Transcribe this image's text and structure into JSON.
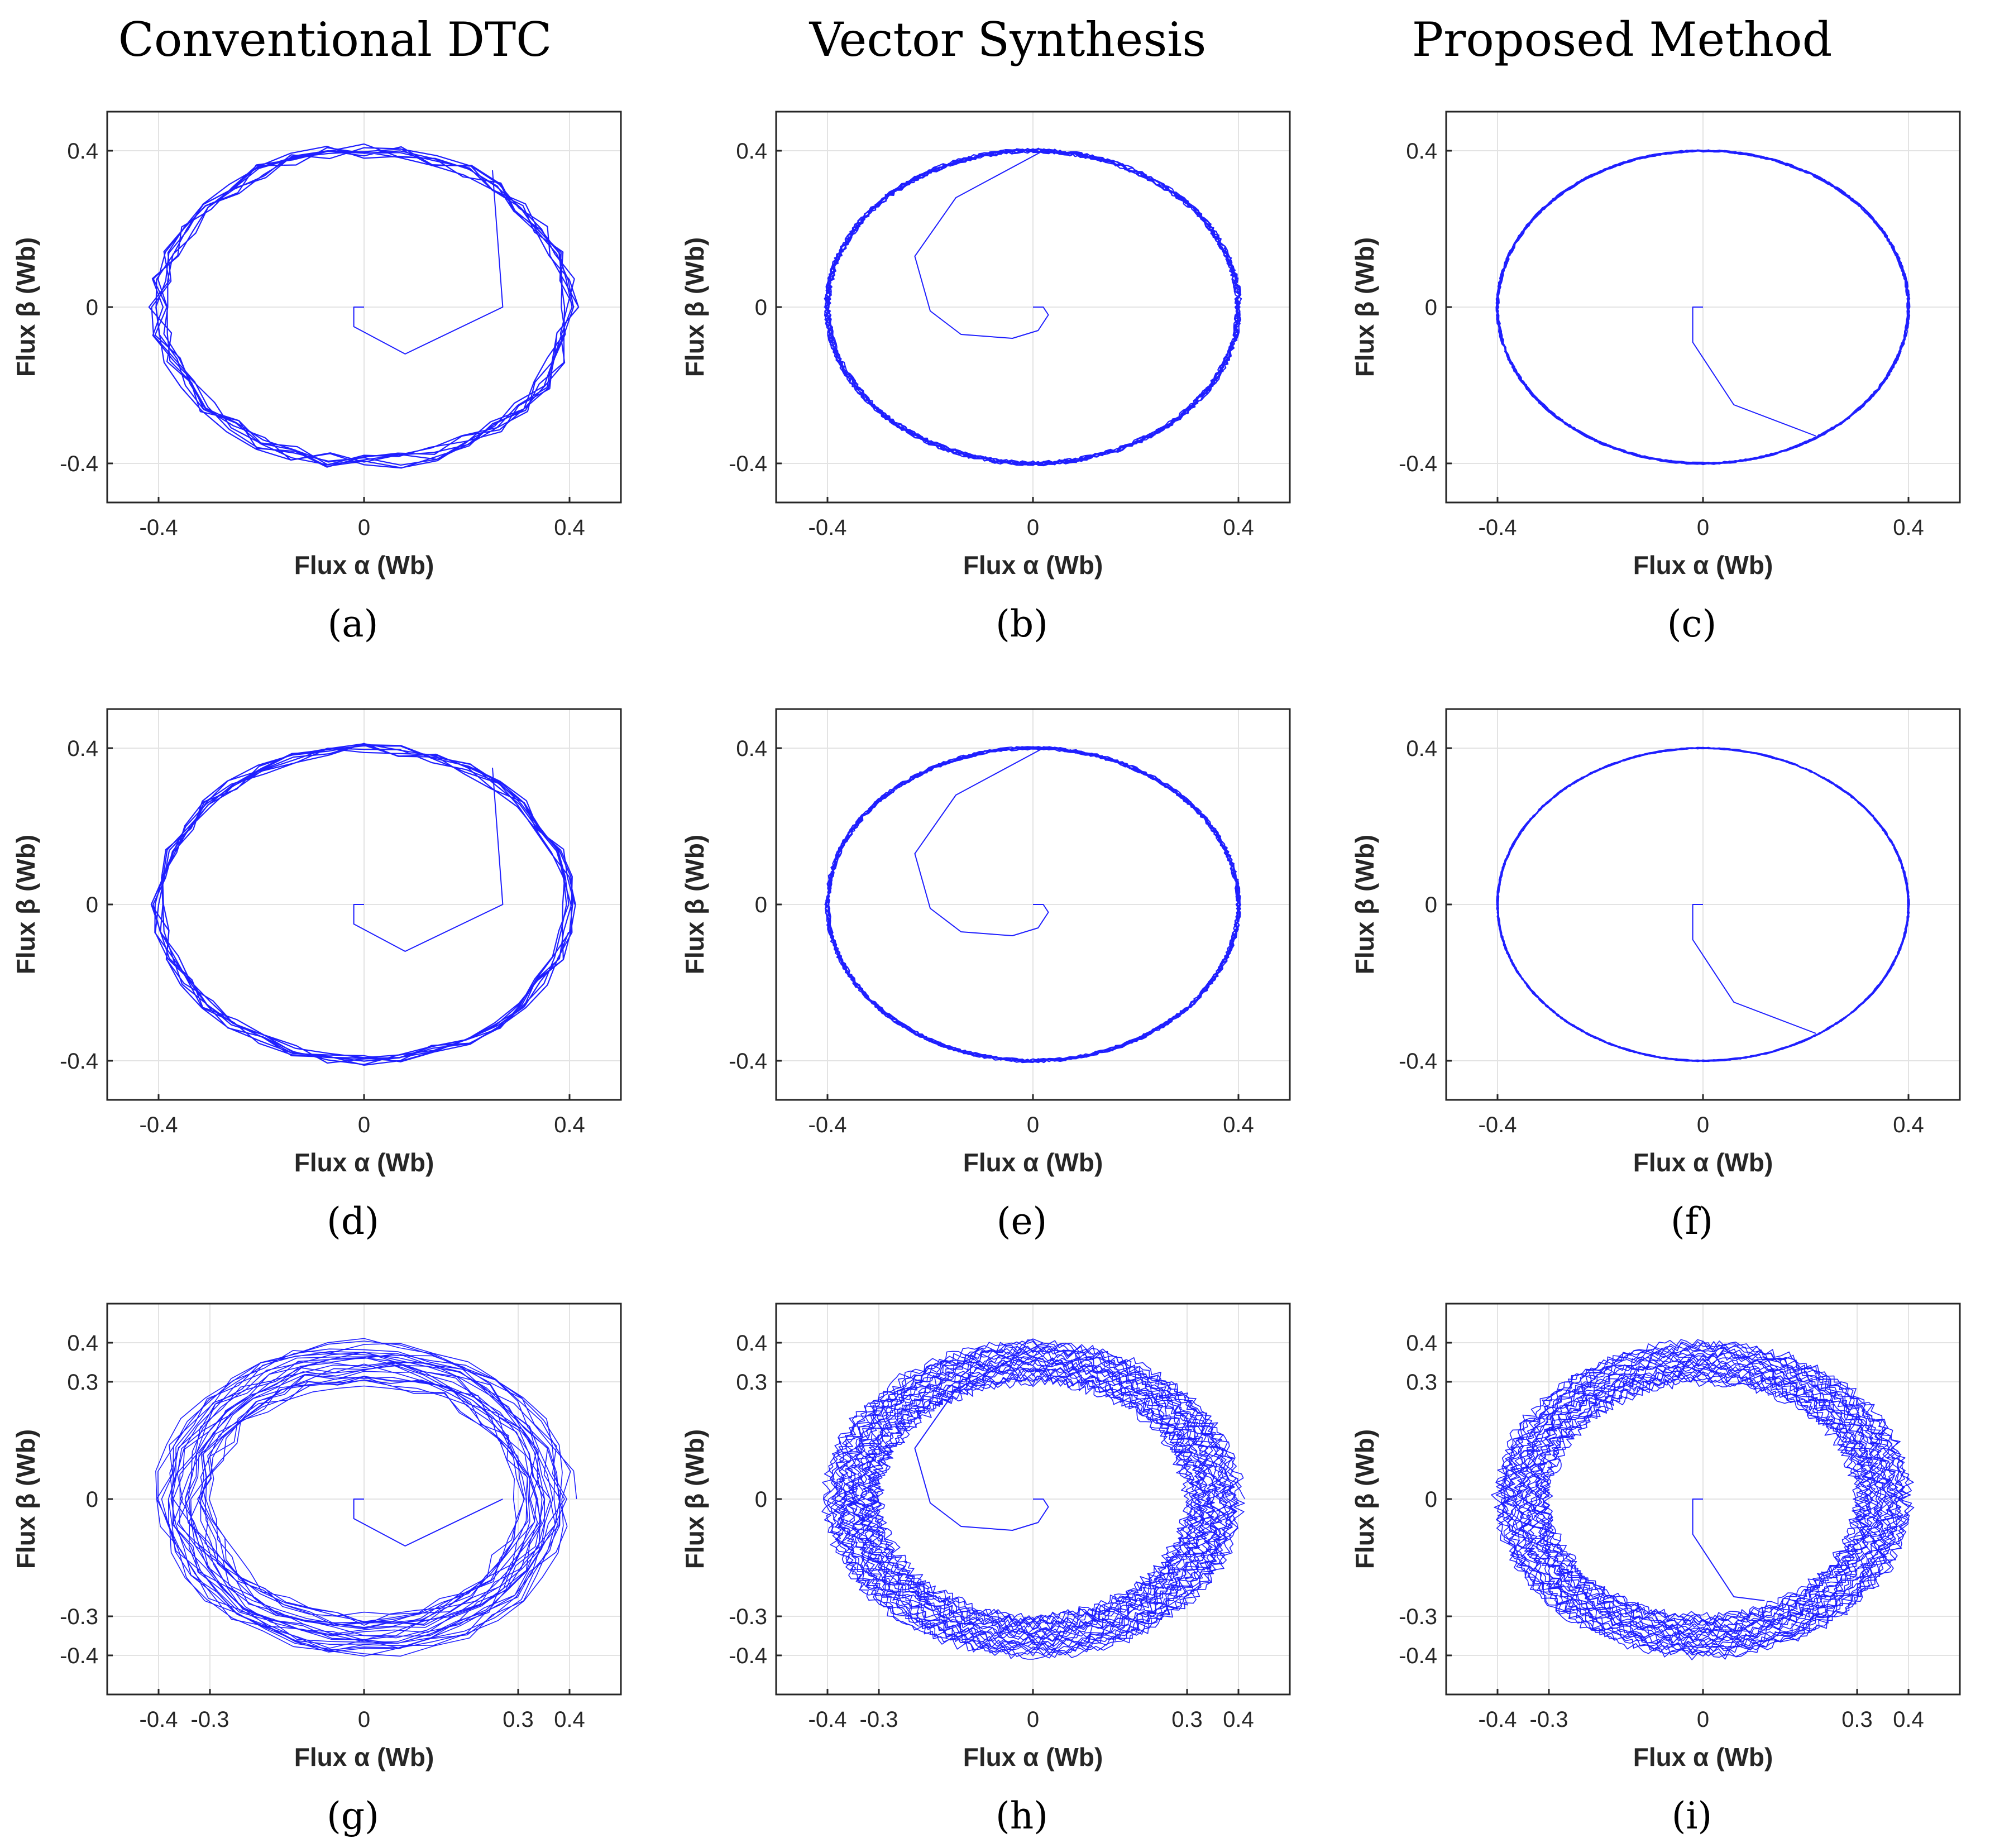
{
  "figure": {
    "column_titles": [
      "Conventional DTC",
      "Vector Synthesis",
      "Proposed Method"
    ],
    "line_color": "#1f1fff"
  },
  "chart_data": [
    {
      "panel": "(a)",
      "type": "line",
      "xlabel": "Flux α (Wb)",
      "ylabel": "Flux β (Wb)",
      "xlim": [
        -0.5,
        0.5
      ],
      "ylim": [
        -0.5,
        0.5
      ],
      "xticks": [
        -0.4,
        0,
        0.4
      ],
      "yticks": [
        -0.4,
        0,
        0.4
      ],
      "method": "Conventional DTC",
      "flux_reference": 0.4,
      "ripple_band": [
        0.375,
        0.415
      ],
      "startup_path": {
        "x": [
          0,
          -0.02,
          -0.02,
          0.08,
          0.27,
          0.25
        ],
        "y": [
          0,
          0,
          -0.05,
          -0.12,
          0.0,
          0.35
        ]
      }
    },
    {
      "panel": "(b)",
      "type": "line",
      "xlabel": "Flux α (Wb)",
      "ylabel": "Flux β (Wb)",
      "xlim": [
        -0.5,
        0.5
      ],
      "ylim": [
        -0.5,
        0.5
      ],
      "xticks": [
        -0.4,
        0,
        0.4
      ],
      "yticks": [
        -0.4,
        0,
        0.4
      ],
      "method": "Vector Synthesis",
      "flux_reference": 0.4,
      "ripple_band": [
        0.392,
        0.405
      ],
      "startup_path": {
        "x": [
          0,
          0.02,
          0.03,
          0.01,
          -0.04,
          -0.14,
          -0.2,
          -0.23,
          -0.15,
          0.02
        ],
        "y": [
          0,
          0,
          -0.02,
          -0.06,
          -0.08,
          -0.07,
          -0.01,
          0.13,
          0.28,
          0.4
        ]
      }
    },
    {
      "panel": "(c)",
      "type": "line",
      "xlabel": "Flux α (Wb)",
      "ylabel": "Flux β (Wb)",
      "xlim": [
        -0.5,
        0.5
      ],
      "ylim": [
        -0.5,
        0.5
      ],
      "xticks": [
        -0.4,
        0,
        0.4
      ],
      "yticks": [
        -0.4,
        0,
        0.4
      ],
      "method": "Proposed Method",
      "flux_reference": 0.4,
      "ripple_band": [
        0.396,
        0.402
      ],
      "startup_path": {
        "x": [
          0,
          -0.02,
          -0.02,
          0.06,
          0.22
        ],
        "y": [
          0,
          0,
          -0.09,
          -0.25,
          -0.33
        ]
      }
    },
    {
      "panel": "(d)",
      "type": "line",
      "xlabel": "Flux α (Wb)",
      "ylabel": "Flux β (Wb)",
      "xlim": [
        -0.5,
        0.5
      ],
      "ylim": [
        -0.5,
        0.5
      ],
      "xticks": [
        -0.4,
        0,
        0.4
      ],
      "yticks": [
        -0.4,
        0,
        0.4
      ],
      "method": "Conventional DTC",
      "flux_reference": 0.4,
      "ripple_band": [
        0.385,
        0.415
      ],
      "startup_path": {
        "x": [
          0,
          -0.02,
          -0.02,
          0.08,
          0.27,
          0.25
        ],
        "y": [
          0,
          0,
          -0.05,
          -0.12,
          0.0,
          0.35
        ]
      }
    },
    {
      "panel": "(e)",
      "type": "line",
      "xlabel": "Flux α (Wb)",
      "ylabel": "Flux β (Wb)",
      "xlim": [
        -0.5,
        0.5
      ],
      "ylim": [
        -0.5,
        0.5
      ],
      "xticks": [
        -0.4,
        0,
        0.4
      ],
      "yticks": [
        -0.4,
        0,
        0.4
      ],
      "method": "Vector Synthesis",
      "flux_reference": 0.4,
      "ripple_band": [
        0.394,
        0.404
      ],
      "startup_path": {
        "x": [
          0,
          0.02,
          0.03,
          0.01,
          -0.04,
          -0.14,
          -0.2,
          -0.23,
          -0.15,
          0.02
        ],
        "y": [
          0,
          0,
          -0.02,
          -0.06,
          -0.08,
          -0.07,
          -0.01,
          0.13,
          0.28,
          0.4
        ]
      }
    },
    {
      "panel": "(f)",
      "type": "line",
      "xlabel": "Flux α (Wb)",
      "ylabel": "Flux β (Wb)",
      "xlim": [
        -0.5,
        0.5
      ],
      "ylim": [
        -0.5,
        0.5
      ],
      "xticks": [
        -0.4,
        0,
        0.4
      ],
      "yticks": [
        -0.4,
        0,
        0.4
      ],
      "method": "Proposed Method",
      "flux_reference": 0.4,
      "ripple_band": [
        0.397,
        0.401
      ],
      "startup_path": {
        "x": [
          0,
          -0.02,
          -0.02,
          0.06,
          0.22
        ],
        "y": [
          0,
          0,
          -0.09,
          -0.25,
          -0.33
        ]
      }
    },
    {
      "panel": "(g)",
      "type": "line",
      "xlabel": "Flux α (Wb)",
      "ylabel": "Flux β (Wb)",
      "xlim": [
        -0.5,
        0.5
      ],
      "ylim": [
        -0.5,
        0.5
      ],
      "xticks": [
        -0.4,
        -0.3,
        0,
        0.3,
        0.4
      ],
      "yticks": [
        -0.4,
        -0.3,
        0,
        0.3,
        0.4
      ],
      "method": "Conventional DTC",
      "flux_transition": [
        0.4,
        0.3
      ],
      "ripple_band": [
        0.29,
        0.42
      ],
      "startup_path": {
        "x": [
          0,
          -0.02,
          -0.02,
          0.08,
          0.27
        ],
        "y": [
          0,
          0,
          -0.05,
          -0.12,
          0.0
        ]
      }
    },
    {
      "panel": "(h)",
      "type": "line",
      "xlabel": "Flux α (Wb)",
      "ylabel": "Flux β (Wb)",
      "xlim": [
        -0.5,
        0.5
      ],
      "ylim": [
        -0.5,
        0.5
      ],
      "xticks": [
        -0.4,
        -0.3,
        0,
        0.3,
        0.4
      ],
      "yticks": [
        -0.4,
        -0.3,
        0,
        0.3,
        0.4
      ],
      "method": "Vector Synthesis",
      "flux_transition": [
        0.4,
        0.3
      ],
      "ripple_band": [
        0.295,
        0.405
      ],
      "startup_path": {
        "x": [
          0,
          0.02,
          0.03,
          0.01,
          -0.04,
          -0.14,
          -0.2,
          -0.23,
          -0.15,
          0.02
        ],
        "y": [
          0,
          0,
          -0.02,
          -0.06,
          -0.08,
          -0.07,
          -0.01,
          0.13,
          0.28,
          0.4
        ]
      }
    },
    {
      "panel": "(i)",
      "type": "line",
      "xlabel": "Flux α (Wb)",
      "ylabel": "Flux β (Wb)",
      "xlim": [
        -0.5,
        0.5
      ],
      "ylim": [
        -0.5,
        0.5
      ],
      "xticks": [
        -0.4,
        -0.3,
        0,
        0.3,
        0.4
      ],
      "yticks": [
        -0.4,
        -0.3,
        0,
        0.3,
        0.4
      ],
      "method": "Proposed Method",
      "flux_transition": [
        0.4,
        0.3
      ],
      "ripple_band": [
        0.298,
        0.402
      ],
      "startup_path": {
        "x": [
          0,
          -0.02,
          -0.02,
          0.06,
          0.12
        ],
        "y": [
          0,
          0,
          -0.09,
          -0.25,
          -0.26
        ]
      }
    }
  ]
}
